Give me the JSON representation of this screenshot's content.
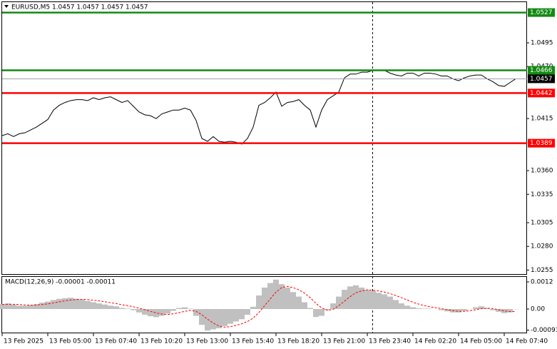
{
  "chart_data": [
    {
      "type": "line",
      "title": "EURUSD,M5  1.0457 1.0457 1.0457 1.0457",
      "color": "#000000",
      "values": [
        1.0397,
        1.0399,
        1.0396,
        1.0399,
        1.04,
        1.0403,
        1.0406,
        1.041,
        1.0414,
        1.0424,
        1.0429,
        1.0432,
        1.0434,
        1.0435,
        1.0435,
        1.0434,
        1.0437,
        1.0435,
        1.0437,
        1.0438,
        1.0435,
        1.0432,
        1.0434,
        1.0428,
        1.0422,
        1.0419,
        1.0418,
        1.0415,
        1.042,
        1.0422,
        1.0424,
        1.0424,
        1.0426,
        1.0424,
        1.0413,
        1.0394,
        1.0391,
        1.0396,
        1.0391,
        1.039,
        1.0391,
        1.039,
        1.0388,
        1.0394,
        1.0406,
        1.0429,
        1.0432,
        1.0437,
        1.0443,
        1.0428,
        1.0432,
        1.0433,
        1.0435,
        1.0429,
        1.0424,
        1.0406,
        1.0424,
        1.0435,
        1.0439,
        1.0443,
        1.0458,
        1.0462,
        1.0462,
        1.0464,
        1.0464,
        1.0466,
        1.0466,
        1.0466,
        1.0463,
        1.0461,
        1.046,
        1.0463,
        1.0463,
        1.046,
        1.0463,
        1.0463,
        1.0462,
        1.046,
        1.046,
        1.0457,
        1.0455,
        1.0458,
        1.046,
        1.0461,
        1.0461,
        1.0457,
        1.0454,
        1.045,
        1.0449,
        1.0453,
        1.0457
      ],
      "ylim": [
        1.025,
        1.0538
      ],
      "yticks": [
        1.0495,
        {
          "value": 1.047,
          "label": "1.0470"
        },
        1.0415,
        {
          "value": 1.036,
          "label": "1.0360"
        },
        1.0335,
        1.0305,
        {
          "value": 1.028,
          "label": "1.0280"
        },
        1.0255
      ],
      "levels": [
        {
          "value": 1.0527,
          "color": "#138a13"
        },
        {
          "value": 1.0466,
          "color": "#138a13"
        },
        {
          "value": 1.0457,
          "color": "#000000"
        },
        {
          "value": 1.0442,
          "color": "#ff0000"
        },
        {
          "value": 1.0389,
          "color": "#ff0000"
        }
      ]
    },
    {
      "type": "macd",
      "title": "MACD(12,26,9) -0.00001 -0.00011",
      "categories": [
        "13 Feb 2025",
        null,
        null,
        null,
        null,
        null,
        null,
        null,
        "13 Feb 05:00",
        null,
        null,
        null,
        null,
        null,
        null,
        null,
        "13 Feb 07:40",
        null,
        null,
        null,
        null,
        null,
        null,
        null,
        "13 Feb 10:20",
        null,
        null,
        null,
        null,
        null,
        null,
        null,
        "13 Feb 13:00",
        null,
        null,
        null,
        null,
        null,
        null,
        null,
        "13 Feb 15:40",
        null,
        null,
        null,
        null,
        null,
        null,
        null,
        "13 Feb 18:20",
        null,
        null,
        null,
        null,
        null,
        null,
        null,
        "13 Feb 21:00",
        null,
        null,
        null,
        null,
        null,
        null,
        null,
        "13 Feb 23:40",
        null,
        null,
        null,
        null,
        null,
        null,
        null,
        "14 Feb 02:20",
        null,
        null,
        null,
        null,
        null,
        null,
        null,
        "14 Feb 05:00",
        null,
        null,
        null,
        null,
        null,
        null,
        null,
        "14 Feb 07:40",
        null,
        null
      ],
      "histogram": {
        "color": "#c0c0c0",
        "values": [
          0.00022,
          0.00025,
          0.0002,
          0.00015,
          0.00015,
          0.00018,
          0.00022,
          0.00028,
          0.00033,
          0.0004,
          0.00045,
          0.00048,
          0.0005,
          0.00046,
          0.00042,
          0.00036,
          0.0003,
          0.00025,
          0.0002,
          0.00015,
          0.00012,
          5e-05,
          2e-05,
          -5e-05,
          -0.00015,
          -0.00025,
          -0.00032,
          -0.00036,
          -0.0003,
          -0.0002,
          -8e-05,
          5e-05,
          8e-05,
          2e-05,
          -0.0003,
          -0.0007,
          -0.00095,
          -0.0009,
          -0.00085,
          -0.00075,
          -0.00065,
          -0.00055,
          -0.00045,
          -0.00025,
          0.0001,
          0.0006,
          0.00095,
          0.00115,
          0.0013,
          0.0011,
          0.00095,
          0.00075,
          0.00055,
          0.0003,
          5e-05,
          -0.00035,
          -0.0003,
          -5e-05,
          0.00025,
          0.00055,
          0.00085,
          0.001,
          0.00105,
          0.00095,
          0.00085,
          0.0008,
          0.00072,
          0.00065,
          0.00055,
          0.0004,
          0.00025,
          0.00015,
          8e-05,
          3e-05,
          2e-05,
          2e-05,
          0.0,
          -5e-05,
          -0.0001,
          -0.00015,
          -0.00015,
          -8e-05,
          0.0,
          8e-05,
          0.00012,
          5e-05,
          -5e-05,
          -0.00012,
          -0.00018,
          -0.00015,
          -1e-05
        ]
      },
      "signal": {
        "color": "#ff0000",
        "values": [
          0.0002,
          0.00021,
          0.00021,
          0.0002,
          0.00018,
          0.00017,
          0.00018,
          0.0002,
          0.00023,
          0.00027,
          0.00032,
          0.00036,
          0.0004,
          0.00042,
          0.00043,
          0.00042,
          0.00039,
          0.00036,
          0.00032,
          0.00028,
          0.00024,
          0.00019,
          0.00015,
          0.0001,
          4e-05,
          -3e-05,
          -0.0001,
          -0.00017,
          -0.00022,
          -0.00024,
          -0.00021,
          -0.00016,
          -0.0001,
          -6e-05,
          -0.0001,
          -0.00025,
          -0.00045,
          -0.00062,
          -0.00075,
          -0.0008,
          -0.00078,
          -0.00072,
          -0.00065,
          -0.00055,
          -0.0004,
          -0.00015,
          0.00015,
          0.00045,
          0.00075,
          0.00095,
          0.001,
          0.00095,
          0.00085,
          0.0007,
          0.0005,
          0.00025,
          5e-05,
          -5e-05,
          -2e-05,
          0.00015,
          0.00035,
          0.00055,
          0.00072,
          0.0008,
          0.00085,
          0.00083,
          0.0008,
          0.00075,
          0.00068,
          0.0006,
          0.0005,
          0.0004,
          0.0003,
          0.00022,
          0.00015,
          0.0001,
          6e-05,
          2e-05,
          -3e-05,
          -7e-05,
          -0.0001,
          -0.0001,
          -7e-05,
          -3e-05,
          2e-05,
          4e-05,
          2e-05,
          -3e-05,
          -8e-05,
          -0.00011,
          -0.00011
        ]
      },
      "ylim": [
        -0.00104,
        0.00142
      ],
      "yticks": [
        0.0012,
        {
          "value": 0,
          "label": "0.00"
        },
        -0.00093
      ]
    }
  ]
}
